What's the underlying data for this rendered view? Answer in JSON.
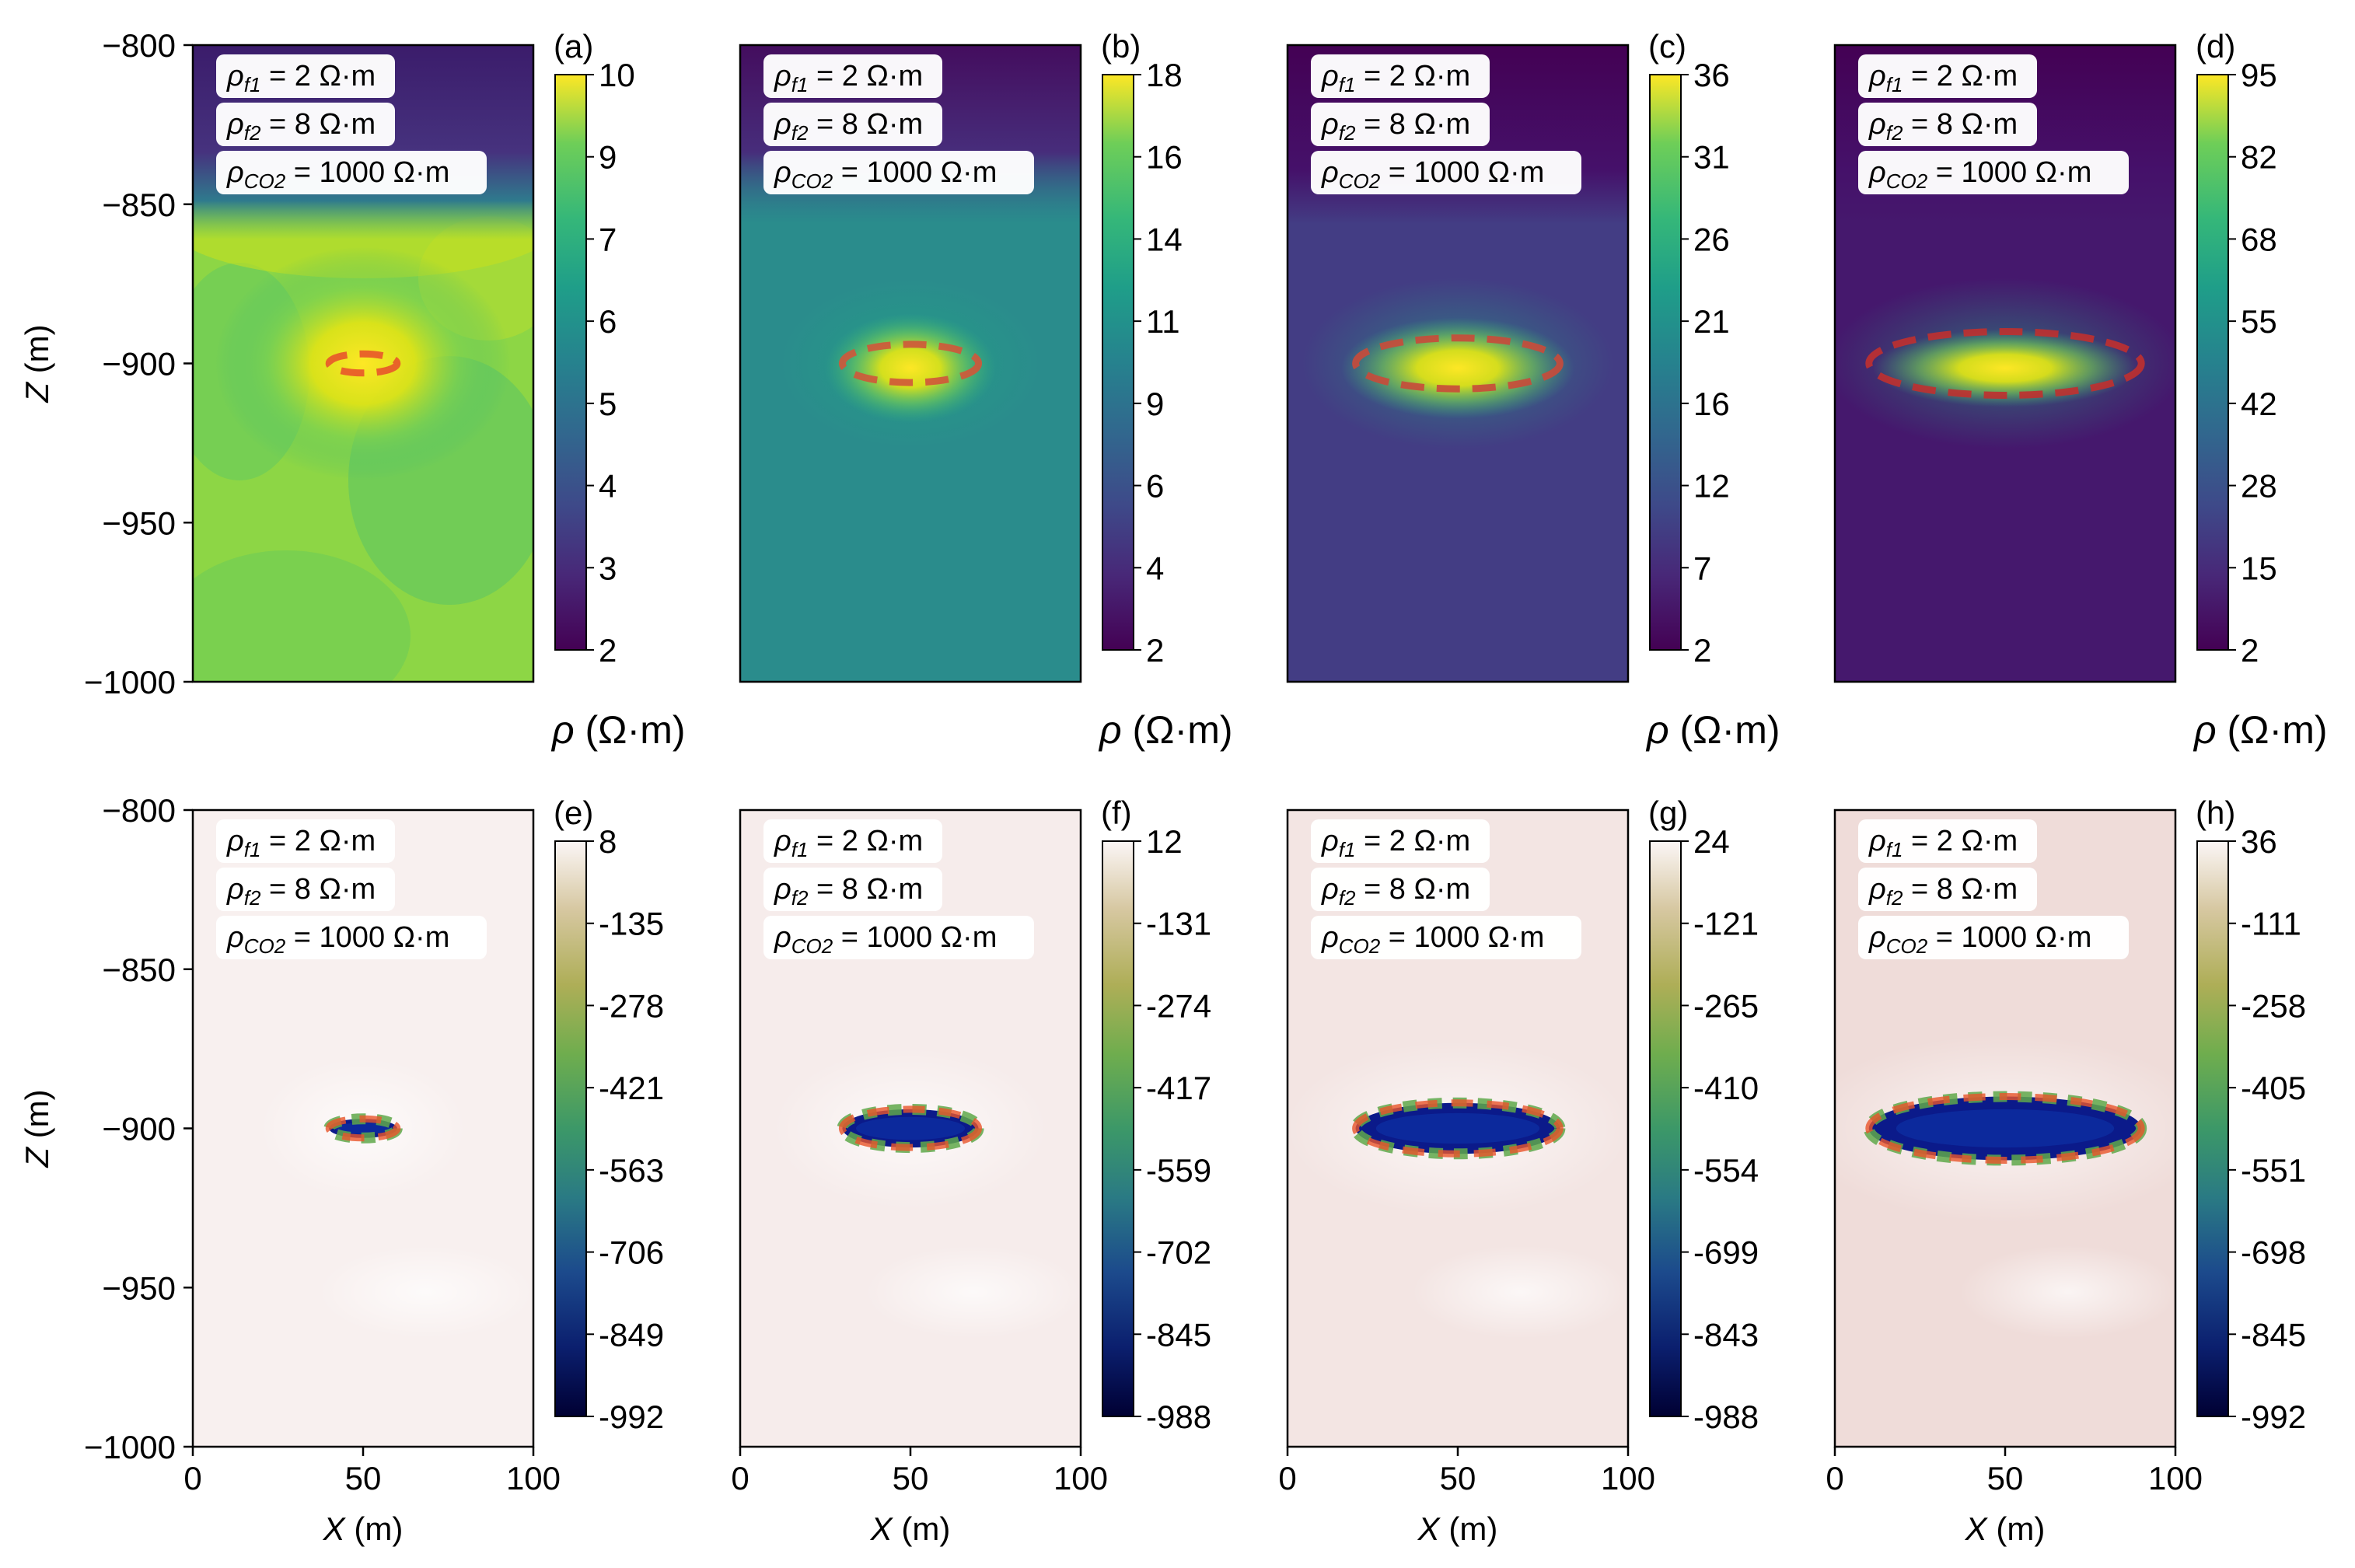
{
  "figure": {
    "ylabel_var": "Z",
    "xlabel_var": "X",
    "axis_unit": "(m)",
    "x_ticks": [
      "0",
      "50",
      "100"
    ],
    "y_ticks": [
      "−800",
      "−850",
      "−900",
      "−950",
      "−1000"
    ],
    "cbar_title": "ρ (Ω·m)",
    "annotation_lines": [
      {
        "sym": "ρ",
        "sub": "f1",
        "value": " = 2 Ω·m"
      },
      {
        "sym": "ρ",
        "sub": "f2",
        "value": " = 8 Ω·m"
      },
      {
        "sym": "ρ",
        "sub": "CO2",
        "value": " = 1000 Ω·m"
      }
    ]
  },
  "chart_data": [
    {
      "type": "heatmap",
      "panel": "(a)",
      "colormap": "viridis",
      "xlim": [
        0,
        100
      ],
      "ylim": [
        -1000,
        -800
      ],
      "colorbar_ticks": [
        "10",
        "9",
        "7",
        "6",
        "5",
        "4",
        "3",
        "2"
      ],
      "colorbar_title": "ρ (Ω·m)",
      "background_value": 7,
      "top_band_value": 2.5,
      "anomaly_peak": 10,
      "ellipse": {
        "center_x": 50,
        "center_z": -900,
        "semi_x": 10,
        "semi_z": 3,
        "style": "dashed",
        "color": "#e8552a"
      }
    },
    {
      "type": "heatmap",
      "panel": "(b)",
      "colormap": "viridis",
      "xlim": [
        0,
        100
      ],
      "ylim": [
        -1000,
        -800
      ],
      "colorbar_ticks": [
        "18",
        "16",
        "14",
        "11",
        "9",
        "6",
        "4",
        "2"
      ],
      "colorbar_title": "ρ (Ω·m)",
      "background_value": 9,
      "top_band_value": 3,
      "anomaly_peak": 18,
      "ellipse": {
        "center_x": 50,
        "center_z": -900,
        "semi_x": 20,
        "semi_z": 6,
        "style": "dashed",
        "color": "#d0573a"
      }
    },
    {
      "type": "heatmap",
      "panel": "(c)",
      "colormap": "viridis",
      "xlim": [
        0,
        100
      ],
      "ylim": [
        -1000,
        -800
      ],
      "colorbar_ticks": [
        "36",
        "31",
        "26",
        "21",
        "16",
        "12",
        "7",
        "2"
      ],
      "colorbar_title": "ρ (Ω·m)",
      "background_value": 9,
      "top_band_value": 3,
      "anomaly_peak": 36,
      "ellipse": {
        "center_x": 50,
        "center_z": -900,
        "semi_x": 30,
        "semi_z": 8,
        "style": "dashed",
        "color": "#c94a3a"
      }
    },
    {
      "type": "heatmap",
      "panel": "(d)",
      "colormap": "viridis",
      "xlim": [
        0,
        100
      ],
      "ylim": [
        -1000,
        -800
      ],
      "colorbar_ticks": [
        "95",
        "82",
        "68",
        "55",
        "42",
        "28",
        "15",
        "2"
      ],
      "colorbar_title": "ρ (Ω·m)",
      "background_value": 10,
      "top_band_value": 3,
      "anomaly_peak": 95,
      "ellipse": {
        "center_x": 50,
        "center_z": -900,
        "semi_x": 40,
        "semi_z": 10,
        "style": "dashed",
        "color": "#c0302f"
      }
    },
    {
      "type": "heatmap",
      "panel": "(e)",
      "colormap": "gist_earth_r",
      "xlim": [
        0,
        100
      ],
      "ylim": [
        -1000,
        -800
      ],
      "colorbar_ticks": [
        "8",
        "-135",
        "-278",
        "-421",
        "-563",
        "-706",
        "-849",
        "-992"
      ],
      "background_value": 0,
      "anomaly_min": -992,
      "ellipse": {
        "center_x": 50,
        "center_z": -900,
        "semi_x": 10,
        "semi_z": 3,
        "style": "dashed",
        "color": "#e8552a"
      }
    },
    {
      "type": "heatmap",
      "panel": "(f)",
      "colormap": "gist_earth_r",
      "xlim": [
        0,
        100
      ],
      "ylim": [
        -1000,
        -800
      ],
      "colorbar_ticks": [
        "12",
        "-131",
        "-274",
        "-417",
        "-559",
        "-702",
        "-845",
        "-988"
      ],
      "background_value": 0,
      "anomaly_min": -988,
      "ellipse": {
        "center_x": 50,
        "center_z": -900,
        "semi_x": 20,
        "semi_z": 6,
        "style": "dashed",
        "color": "#e8552a"
      }
    },
    {
      "type": "heatmap",
      "panel": "(g)",
      "colormap": "gist_earth_r",
      "xlim": [
        0,
        100
      ],
      "ylim": [
        -1000,
        -800
      ],
      "colorbar_ticks": [
        "24",
        "-121",
        "-265",
        "-410",
        "-554",
        "-699",
        "-843",
        "-988"
      ],
      "background_value": 0,
      "anomaly_min": -988,
      "ellipse": {
        "center_x": 50,
        "center_z": -900,
        "semi_x": 30,
        "semi_z": 8,
        "style": "dashed",
        "color": "#e8552a"
      }
    },
    {
      "type": "heatmap",
      "panel": "(h)",
      "colormap": "gist_earth_r",
      "xlim": [
        0,
        100
      ],
      "ylim": [
        -1000,
        -800
      ],
      "colorbar_ticks": [
        "36",
        "-111",
        "-258",
        "-405",
        "-551",
        "-698",
        "-845",
        "-992"
      ],
      "background_value": 0,
      "anomaly_min": -992,
      "ellipse": {
        "center_x": 50,
        "center_z": -900,
        "semi_x": 40,
        "semi_z": 10,
        "style": "dashed",
        "color": "#e8552a"
      }
    }
  ]
}
